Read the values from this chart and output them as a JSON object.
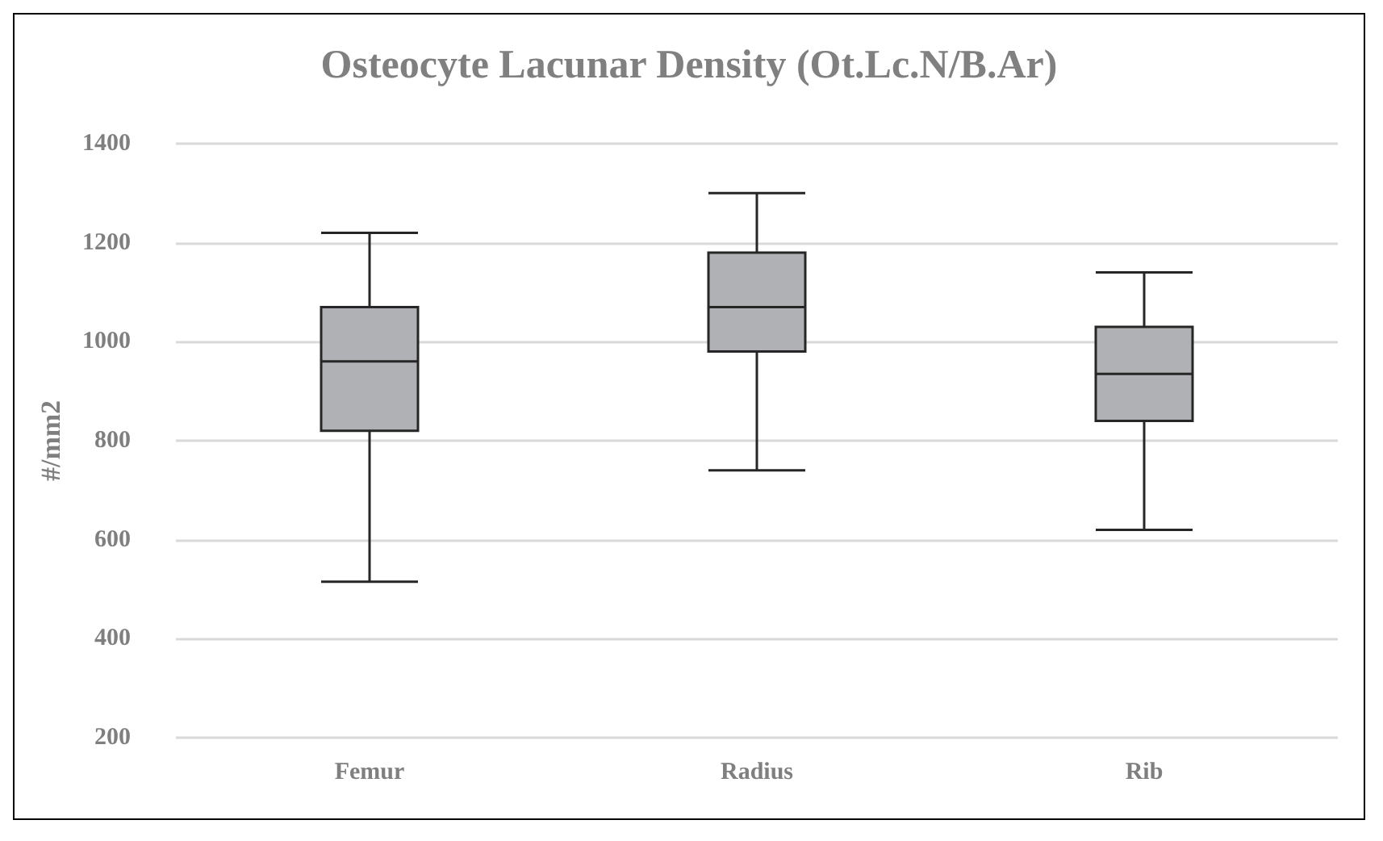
{
  "chart_data": {
    "type": "box",
    "title": "Osteocyte Lacunar Density (Ot.Lc.N/B.Ar)",
    "ylabel": "#/mm2",
    "categories": [
      "Femur",
      "Radius",
      "Rib"
    ],
    "color": "#b0b1b4",
    "boxes": [
      {
        "low": 515,
        "q1": 820,
        "median": 960,
        "q3": 1070,
        "high": 1220
      },
      {
        "low": 740,
        "q1": 980,
        "median": 1070,
        "q3": 1180,
        "high": 1300
      },
      {
        "low": 620,
        "q1": 840,
        "median": 935,
        "q3": 1030,
        "high": 1140
      }
    ],
    "ylim": [
      200,
      1400
    ],
    "yticks": [
      200,
      400,
      600,
      800,
      1000,
      1200,
      1400
    ],
    "grid": "y"
  }
}
